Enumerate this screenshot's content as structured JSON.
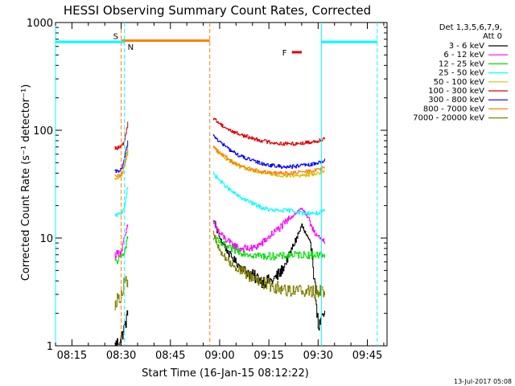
{
  "chart_data": {
    "type": "line",
    "title": "HESSI Observing Summary Count Rates, Corrected",
    "xlabel": "Start Time (16-Jan-15 08:12:22)",
    "ylabel": "Corrected Count Rate (s⁻¹ detector⁻¹)",
    "y_scale": "log",
    "xlim": [
      "08:10",
      "09:51"
    ],
    "ylim": [
      1,
      1000
    ],
    "x_ticks": [
      "08:15",
      "08:30",
      "08:45",
      "09:00",
      "09:15",
      "09:30",
      "09:45"
    ],
    "y_ticks": [
      {
        "value": 1,
        "label": "1"
      },
      {
        "value": 10,
        "label": "10"
      },
      {
        "value": 100,
        "label": "100"
      },
      {
        "value": 1000,
        "label": "1000"
      }
    ],
    "legend": {
      "placement": "right",
      "header": [
        "Det 1,3,5,6,7,9,",
        "Att 0"
      ],
      "entries": [
        {
          "label": "3 - 6 keV",
          "color": "#000000"
        },
        {
          "label": "6 - 12 keV",
          "color": "#ff00ff"
        },
        {
          "label": "12 - 25 keV",
          "color": "#00e000"
        },
        {
          "label": "25 - 50 keV",
          "color": "#00ffff"
        },
        {
          "label": "50 - 100 keV",
          "color": "#d8c000"
        },
        {
          "label": "100 - 300 keV",
          "color": "#e00000"
        },
        {
          "label": "300 - 800 keV",
          "color": "#0000ff"
        },
        {
          "label": "800 - 7000 keV",
          "color": "#ff8000"
        },
        {
          "label": "7000 - 20000 keV",
          "color": "#808000"
        }
      ]
    },
    "annotations": [
      {
        "label": "S",
        "type": "SAA",
        "start": "08:30",
        "end": "08:57",
        "color": "#ff8000"
      },
      {
        "label": "N",
        "type": "night",
        "intervals": [
          [
            "08:10",
            "08:31"
          ],
          [
            "09:31",
            "09:48"
          ]
        ],
        "color": "#00ffff"
      },
      {
        "label": "F",
        "type": "flare",
        "start": "09:22",
        "end": "09:25",
        "color": "#e00000"
      }
    ],
    "segments": [
      [
        "08:28",
        "08:32"
      ],
      [
        "08:58",
        "09:32"
      ]
    ],
    "series": [
      {
        "band": "3 - 6 keV",
        "color": "#000000",
        "x": [
          "08:28",
          "08:30",
          "08:31",
          "08:32",
          "08:58",
          "09:00",
          "09:03",
          "09:06",
          "09:10",
          "09:13",
          "09:16",
          "09:19",
          "09:22",
          "09:25",
          "09:28",
          "09:30",
          "09:32"
        ],
        "y": [
          1,
          1.2,
          1.5,
          2,
          15,
          10,
          7,
          5.5,
          4.5,
          4,
          4,
          5,
          8,
          13,
          8,
          1.5,
          2
        ]
      },
      {
        "band": "6 - 12 keV",
        "color": "#ff00ff",
        "x": [
          "08:28",
          "08:30",
          "08:31",
          "08:32",
          "08:58",
          "09:00",
          "09:03",
          "09:06",
          "09:10",
          "09:13",
          "09:16",
          "09:19",
          "09:22",
          "09:25",
          "09:28",
          "09:30",
          "09:32"
        ],
        "y": [
          7,
          7.5,
          10,
          13,
          14,
          11,
          9,
          8,
          8,
          9,
          11,
          13,
          16,
          19,
          13,
          10,
          9
        ]
      },
      {
        "band": "12 - 25 keV",
        "color": "#00e000",
        "x": [
          "08:28",
          "08:30",
          "08:31",
          "08:32",
          "08:58",
          "09:00",
          "09:03",
          "09:06",
          "09:10",
          "09:13",
          "09:16",
          "09:19",
          "09:22",
          "09:25",
          "09:28",
          "09:30",
          "09:32"
        ],
        "y": [
          6,
          6.5,
          8,
          10,
          10,
          9,
          8,
          7.5,
          7,
          6.8,
          6.8,
          6.8,
          7,
          7,
          7,
          7,
          7
        ]
      },
      {
        "band": "25 - 50 keV",
        "color": "#00ffff",
        "x": [
          "08:28",
          "08:30",
          "08:31",
          "08:32",
          "08:58",
          "09:00",
          "09:03",
          "09:06",
          "09:10",
          "09:13",
          "09:16",
          "09:19",
          "09:22",
          "09:25",
          "09:28",
          "09:30",
          "09:32"
        ],
        "y": [
          16,
          17,
          20,
          30,
          40,
          34,
          28,
          24,
          21,
          19,
          18,
          18,
          18,
          17,
          17,
          17,
          18
        ]
      },
      {
        "band": "50 - 100 keV",
        "color": "#d8c000",
        "x": [
          "08:28",
          "08:30",
          "08:31",
          "08:32",
          "08:58",
          "09:00",
          "09:03",
          "09:06",
          "09:10",
          "09:13",
          "09:16",
          "09:19",
          "09:22",
          "09:25",
          "09:28",
          "09:30",
          "09:32"
        ],
        "y": [
          35,
          37,
          48,
          70,
          70,
          60,
          52,
          46,
          42,
          40,
          39,
          38,
          38,
          38,
          39,
          40,
          42
        ]
      },
      {
        "band": "100 - 300 keV",
        "color": "#e00000",
        "x": [
          "08:28",
          "08:30",
          "08:31",
          "08:32",
          "08:58",
          "09:00",
          "09:03",
          "09:06",
          "09:10",
          "09:13",
          "09:16",
          "09:19",
          "09:22",
          "09:25",
          "09:28",
          "09:30",
          "09:32"
        ],
        "y": [
          68,
          70,
          80,
          120,
          130,
          115,
          100,
          92,
          84,
          80,
          77,
          75,
          75,
          76,
          78,
          80,
          85
        ]
      },
      {
        "band": "300 - 800 keV",
        "color": "#0000ff",
        "x": [
          "08:28",
          "08:30",
          "08:31",
          "08:32",
          "08:58",
          "09:00",
          "09:03",
          "09:06",
          "09:10",
          "09:13",
          "09:16",
          "09:19",
          "09:22",
          "09:25",
          "09:28",
          "09:30",
          "09:32"
        ],
        "y": [
          41,
          43,
          55,
          80,
          90,
          78,
          66,
          58,
          52,
          49,
          47,
          46,
          46,
          47,
          48,
          50,
          53
        ]
      },
      {
        "band": "800 - 7000 keV",
        "color": "#ff8000",
        "x": [
          "08:28",
          "08:30",
          "08:31",
          "08:32",
          "08:58",
          "09:00",
          "09:03",
          "09:06",
          "09:10",
          "09:13",
          "09:16",
          "09:19",
          "09:22",
          "09:25",
          "09:28",
          "09:30",
          "09:32"
        ],
        "y": [
          37,
          38,
          48,
          65,
          72,
          62,
          53,
          47,
          43,
          41,
          40,
          40,
          40,
          41,
          42,
          43,
          45
        ]
      },
      {
        "band": "7000 - 20000 keV",
        "color": "#808000",
        "x": [
          "08:28",
          "08:30",
          "08:31",
          "08:32",
          "08:58",
          "09:00",
          "09:03",
          "09:06",
          "09:10",
          "09:13",
          "09:16",
          "09:19",
          "09:22",
          "09:25",
          "09:28",
          "09:30",
          "09:32"
        ],
        "y": [
          2.5,
          3,
          4,
          4,
          11,
          7.5,
          6,
          5,
          4.3,
          3.9,
          3.6,
          3.4,
          3.3,
          3.3,
          3.2,
          3.2,
          3.2
        ]
      }
    ]
  },
  "footer": {
    "date_stamp": "13-Jul-2017 05:08"
  }
}
